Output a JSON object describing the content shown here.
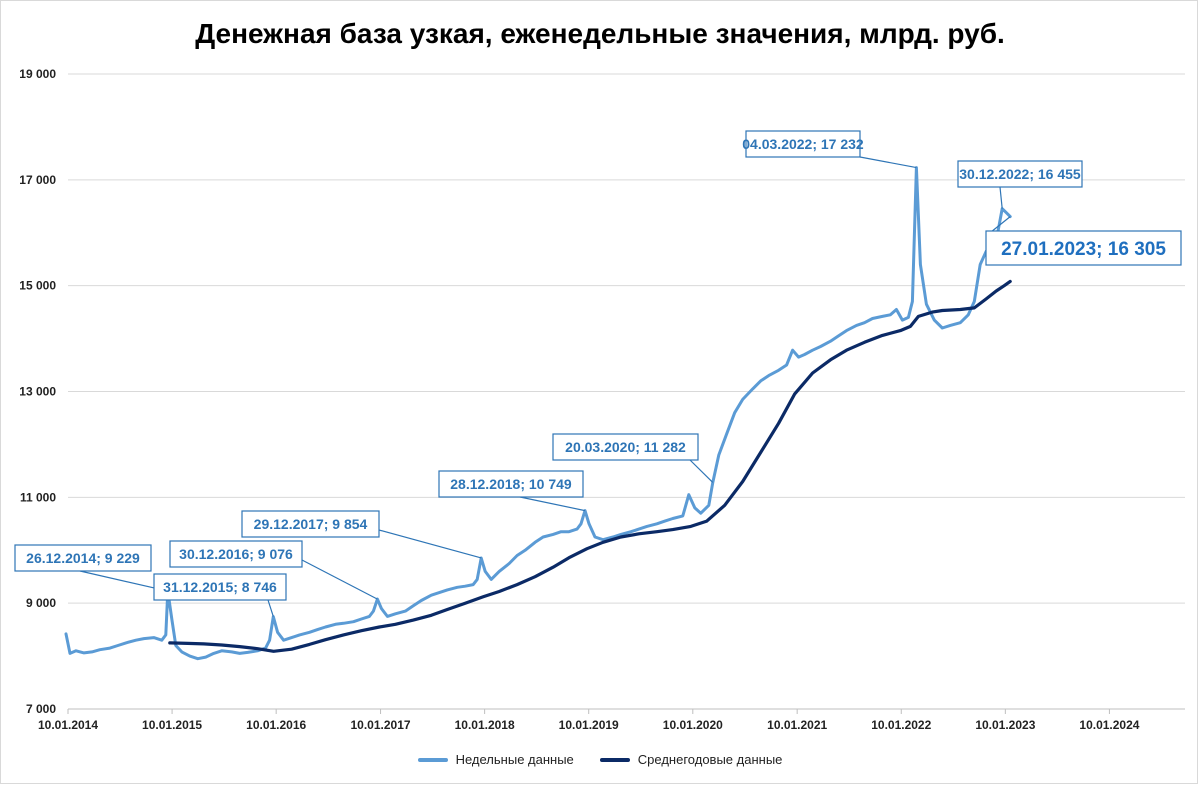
{
  "chart_data": {
    "type": "line",
    "title": "Денежная база узкая, еженедельные значения, млрд. руб.",
    "xlabel": "",
    "ylabel": "",
    "ylim": [
      7000,
      19000
    ],
    "xlim": [
      "2014-01-10",
      "2024-10-01"
    ],
    "y_ticks": [
      7000,
      9000,
      11000,
      13000,
      15000,
      17000,
      19000
    ],
    "y_tick_labels": [
      "7 000",
      "9 000",
      "11 000",
      "13 000",
      "15 000",
      "17 000",
      "19 000"
    ],
    "x_ticks": [
      "2014-01-10",
      "2015-01-10",
      "2016-01-10",
      "2017-01-10",
      "2018-01-10",
      "2019-01-10",
      "2020-01-10",
      "2021-01-10",
      "2022-01-10",
      "2023-01-10",
      "2024-01-10"
    ],
    "x_tick_labels": [
      "10.01.2014",
      "10.01.2015",
      "10.01.2016",
      "10.01.2017",
      "10.01.2018",
      "10.01.2019",
      "10.01.2020",
      "10.01.2021",
      "10.01.2022",
      "10.01.2023",
      "10.01.2024"
    ],
    "grid": true,
    "legend_position": "bottom",
    "series": [
      {
        "name": "Недельные данные",
        "color": "#5b9bd5",
        "points": [
          [
            "2014-01-03",
            8420
          ],
          [
            "2014-01-17",
            8050
          ],
          [
            "2014-02-07",
            8100
          ],
          [
            "2014-03-07",
            8060
          ],
          [
            "2014-04-04",
            8080
          ],
          [
            "2014-05-02",
            8120
          ],
          [
            "2014-06-06",
            8150
          ],
          [
            "2014-07-04",
            8200
          ],
          [
            "2014-08-01",
            8250
          ],
          [
            "2014-09-05",
            8300
          ],
          [
            "2014-10-03",
            8330
          ],
          [
            "2014-11-07",
            8350
          ],
          [
            "2014-12-05",
            8300
          ],
          [
            "2014-12-19",
            8400
          ],
          [
            "2014-12-26",
            9229
          ],
          [
            "2015-01-09",
            8700
          ],
          [
            "2015-01-23",
            8200
          ],
          [
            "2015-02-13",
            8080
          ],
          [
            "2015-03-13",
            8000
          ],
          [
            "2015-04-10",
            7950
          ],
          [
            "2015-05-08",
            7980
          ],
          [
            "2015-06-05",
            8050
          ],
          [
            "2015-07-03",
            8100
          ],
          [
            "2015-08-07",
            8080
          ],
          [
            "2015-09-04",
            8050
          ],
          [
            "2015-10-02",
            8070
          ],
          [
            "2015-11-06",
            8100
          ],
          [
            "2015-12-04",
            8150
          ],
          [
            "2015-12-18",
            8300
          ],
          [
            "2015-12-31",
            8746
          ],
          [
            "2016-01-15",
            8450
          ],
          [
            "2016-02-05",
            8300
          ],
          [
            "2016-03-04",
            8350
          ],
          [
            "2016-04-01",
            8400
          ],
          [
            "2016-05-06",
            8450
          ],
          [
            "2016-06-03",
            8500
          ],
          [
            "2016-07-01",
            8550
          ],
          [
            "2016-08-05",
            8600
          ],
          [
            "2016-09-02",
            8620
          ],
          [
            "2016-10-07",
            8650
          ],
          [
            "2016-11-04",
            8700
          ],
          [
            "2016-12-02",
            8750
          ],
          [
            "2016-12-16",
            8850
          ],
          [
            "2016-12-30",
            9076
          ],
          [
            "2017-01-13",
            8900
          ],
          [
            "2017-02-03",
            8750
          ],
          [
            "2017-03-03",
            8800
          ],
          [
            "2017-04-07",
            8850
          ],
          [
            "2017-05-05",
            8950
          ],
          [
            "2017-06-02",
            9050
          ],
          [
            "2017-07-07",
            9150
          ],
          [
            "2017-08-04",
            9200
          ],
          [
            "2017-09-01",
            9250
          ],
          [
            "2017-10-06",
            9300
          ],
          [
            "2017-11-03",
            9320
          ],
          [
            "2017-12-01",
            9350
          ],
          [
            "2017-12-15",
            9450
          ],
          [
            "2017-12-29",
            9854
          ],
          [
            "2018-01-12",
            9600
          ],
          [
            "2018-02-02",
            9450
          ],
          [
            "2018-03-02",
            9600
          ],
          [
            "2018-04-06",
            9750
          ],
          [
            "2018-05-04",
            9900
          ],
          [
            "2018-06-01",
            10000
          ],
          [
            "2018-07-06",
            10150
          ],
          [
            "2018-08-03",
            10250
          ],
          [
            "2018-09-07",
            10300
          ],
          [
            "2018-10-05",
            10350
          ],
          [
            "2018-11-02",
            10350
          ],
          [
            "2018-11-30",
            10400
          ],
          [
            "2018-12-14",
            10500
          ],
          [
            "2018-12-28",
            10749
          ],
          [
            "2019-01-11",
            10500
          ],
          [
            "2019-02-01",
            10250
          ],
          [
            "2019-03-01",
            10200
          ],
          [
            "2019-04-05",
            10250
          ],
          [
            "2019-05-03",
            10300
          ],
          [
            "2019-06-07",
            10350
          ],
          [
            "2019-07-05",
            10400
          ],
          [
            "2019-08-02",
            10450
          ],
          [
            "2019-09-06",
            10500
          ],
          [
            "2019-10-04",
            10550
          ],
          [
            "2019-11-01",
            10600
          ],
          [
            "2019-12-06",
            10650
          ],
          [
            "2019-12-27",
            11050
          ],
          [
            "2020-01-17",
            10800
          ],
          [
            "2020-02-07",
            10700
          ],
          [
            "2020-03-06",
            10850
          ],
          [
            "2020-03-20",
            11282
          ],
          [
            "2020-04-10",
            11800
          ],
          [
            "2020-05-08",
            12200
          ],
          [
            "2020-06-05",
            12600
          ],
          [
            "2020-07-03",
            12850
          ],
          [
            "2020-08-07",
            13050
          ],
          [
            "2020-09-04",
            13200
          ],
          [
            "2020-10-02",
            13300
          ],
          [
            "2020-11-06",
            13400
          ],
          [
            "2020-12-04",
            13500
          ],
          [
            "2020-12-25",
            13780
          ],
          [
            "2021-01-15",
            13650
          ],
          [
            "2021-02-05",
            13700
          ],
          [
            "2021-03-05",
            13780
          ],
          [
            "2021-04-02",
            13850
          ],
          [
            "2021-05-07",
            13950
          ],
          [
            "2021-06-04",
            14050
          ],
          [
            "2021-07-02",
            14150
          ],
          [
            "2021-08-06",
            14250
          ],
          [
            "2021-09-03",
            14300
          ],
          [
            "2021-10-01",
            14380
          ],
          [
            "2021-11-05",
            14420
          ],
          [
            "2021-12-03",
            14450
          ],
          [
            "2021-12-24",
            14550
          ],
          [
            "2022-01-14",
            14350
          ],
          [
            "2022-02-04",
            14400
          ],
          [
            "2022-02-18",
            14700
          ],
          [
            "2022-03-04",
            17232
          ],
          [
            "2022-03-18",
            15400
          ],
          [
            "2022-04-08",
            14650
          ],
          [
            "2022-05-06",
            14350
          ],
          [
            "2022-06-03",
            14200
          ],
          [
            "2022-07-01",
            14250
          ],
          [
            "2022-08-05",
            14300
          ],
          [
            "2022-09-02",
            14450
          ],
          [
            "2022-09-23",
            14700
          ],
          [
            "2022-10-14",
            15400
          ],
          [
            "2022-11-04",
            15650
          ],
          [
            "2022-11-25",
            15750
          ],
          [
            "2022-12-16",
            16050
          ],
          [
            "2022-12-30",
            16455
          ],
          [
            "2023-01-13",
            16380
          ],
          [
            "2023-01-27",
            16305
          ]
        ]
      },
      {
        "name": "Среднегодовые данные",
        "color": "#0b2a66",
        "points": [
          [
            "2015-01-02",
            8250
          ],
          [
            "2015-03-06",
            8240
          ],
          [
            "2015-05-01",
            8230
          ],
          [
            "2015-07-03",
            8210
          ],
          [
            "2015-09-04",
            8180
          ],
          [
            "2015-11-06",
            8140
          ],
          [
            "2016-01-01",
            8090
          ],
          [
            "2016-03-04",
            8130
          ],
          [
            "2016-05-06",
            8220
          ],
          [
            "2016-07-01",
            8310
          ],
          [
            "2016-09-02",
            8400
          ],
          [
            "2016-11-04",
            8480
          ],
          [
            "2017-01-06",
            8550
          ],
          [
            "2017-03-03",
            8600
          ],
          [
            "2017-05-05",
            8680
          ],
          [
            "2017-07-07",
            8770
          ],
          [
            "2017-09-01",
            8880
          ],
          [
            "2017-11-03",
            9000
          ],
          [
            "2018-01-05",
            9120
          ],
          [
            "2018-03-02",
            9220
          ],
          [
            "2018-05-04",
            9350
          ],
          [
            "2018-07-06",
            9500
          ],
          [
            "2018-09-07",
            9680
          ],
          [
            "2018-11-02",
            9860
          ],
          [
            "2019-01-04",
            10030
          ],
          [
            "2019-03-01",
            10150
          ],
          [
            "2019-05-03",
            10250
          ],
          [
            "2019-07-05",
            10310
          ],
          [
            "2019-09-06",
            10350
          ],
          [
            "2019-11-01",
            10390
          ],
          [
            "2020-01-03",
            10450
          ],
          [
            "2020-02-28",
            10550
          ],
          [
            "2020-05-01",
            10850
          ],
          [
            "2020-07-03",
            11300
          ],
          [
            "2020-09-04",
            11850
          ],
          [
            "2020-11-06",
            12400
          ],
          [
            "2021-01-01",
            12950
          ],
          [
            "2021-03-05",
            13350
          ],
          [
            "2021-05-07",
            13600
          ],
          [
            "2021-07-02",
            13780
          ],
          [
            "2021-09-03",
            13930
          ],
          [
            "2021-11-05",
            14060
          ],
          [
            "2022-01-07",
            14150
          ],
          [
            "2022-02-11",
            14230
          ],
          [
            "2022-03-11",
            14420
          ],
          [
            "2022-04-29",
            14500
          ],
          [
            "2022-06-03",
            14530
          ],
          [
            "2022-08-05",
            14550
          ],
          [
            "2022-09-23",
            14580
          ],
          [
            "2022-11-04",
            14750
          ],
          [
            "2022-12-09",
            14900
          ],
          [
            "2023-01-06",
            15000
          ],
          [
            "2023-01-27",
            15080
          ]
        ]
      }
    ],
    "annotations": [
      {
        "label": "26.12.2014; 9 229",
        "date": "2014-12-26",
        "value": 9229,
        "style": "normal"
      },
      {
        "label": "31.12.2015; 8 746",
        "date": "2015-12-31",
        "value": 8746,
        "style": "normal"
      },
      {
        "label": "30.12.2016; 9 076",
        "date": "2016-12-30",
        "value": 9076,
        "style": "normal"
      },
      {
        "label": "29.12.2017; 9 854",
        "date": "2017-12-29",
        "value": 9854,
        "style": "normal"
      },
      {
        "label": "28.12.2018; 10 749",
        "date": "2018-12-28",
        "value": 10749,
        "style": "normal"
      },
      {
        "label": "20.03.2020; 11 282",
        "date": "2020-03-20",
        "value": 11282,
        "style": "normal"
      },
      {
        "label": "04.03.2022; 17 232",
        "date": "2022-03-04",
        "value": 17232,
        "style": "normal"
      },
      {
        "label": "30.12.2022; 16 455",
        "date": "2022-12-30",
        "value": 16455,
        "style": "normal"
      },
      {
        "label": "27.01.2023; 16 305",
        "date": "2023-01-27",
        "value": 16305,
        "style": "large"
      }
    ]
  }
}
